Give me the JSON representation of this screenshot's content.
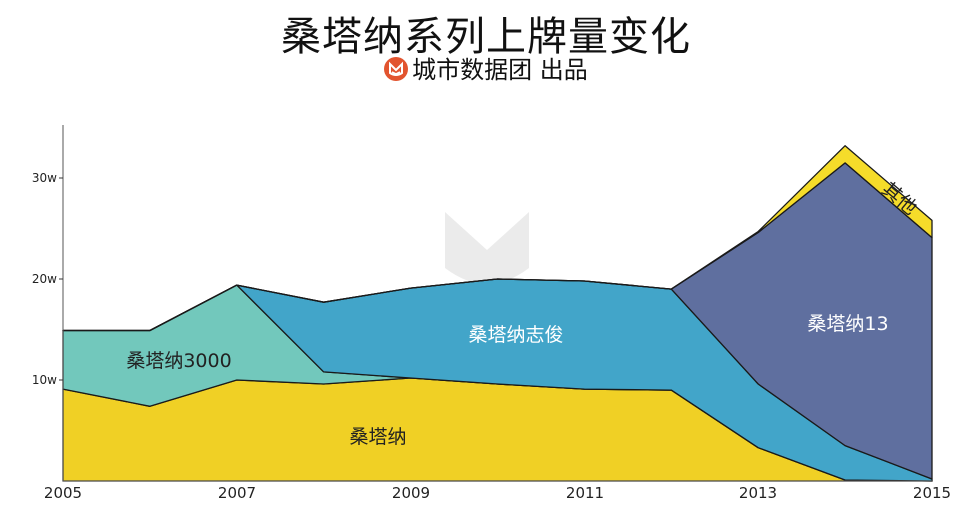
{
  "header": {
    "title": "桑塔纳系列上牌量变化",
    "subtitle": "城市数据团 出品",
    "logo_color": "#e2542f"
  },
  "chart_data": {
    "type": "area",
    "stacked": true,
    "title": "桑塔纳系列上牌量变化",
    "subtitle": "城市数据团 出品",
    "xlabel": "",
    "ylabel": "",
    "x": [
      2005,
      2006,
      2007,
      2008,
      2009,
      2010,
      2011,
      2012,
      2013,
      2014,
      2015
    ],
    "x_tick_labels": [
      "2005",
      "2007",
      "2009",
      "2011",
      "2013",
      "2015"
    ],
    "y_tick_labels": [
      "10w",
      "20w",
      "30w"
    ],
    "y_ticks": [
      10,
      20,
      30
    ],
    "ylim": [
      0,
      35
    ],
    "unit": "w (万)",
    "grid": false,
    "legend": "inline labels on areas",
    "series": [
      {
        "name": "桑塔纳",
        "color": "#f0d025",
        "label_color": "#222222",
        "values": [
          9.1,
          7.4,
          10.0,
          9.6,
          10.2,
          9.6,
          9.1,
          9.0,
          3.3,
          0.1,
          0.0
        ]
      },
      {
        "name": "桑塔纳3000",
        "color": "#72c8bc",
        "label_color": "#222222",
        "values": [
          5.8,
          7.5,
          9.4,
          1.2,
          0.0,
          0.0,
          0.0,
          0.0,
          0.0,
          0.0,
          0.0
        ]
      },
      {
        "name": "桑塔纳志俊",
        "color": "#42a5c9",
        "label_color": "#ffffff",
        "values": [
          0.0,
          0.0,
          0.0,
          6.9,
          8.9,
          10.4,
          10.7,
          10.0,
          6.3,
          3.4,
          0.2
        ]
      },
      {
        "name": "桑塔纳13",
        "color": "#5f6f9f",
        "label_color": "#ffffff",
        "values": [
          0.0,
          0.0,
          0.0,
          0.0,
          0.0,
          0.0,
          0.0,
          0.0,
          15.0,
          28.0,
          23.9
        ]
      },
      {
        "name": "其他",
        "color": "#f5dc2a",
        "label_color": "#222222",
        "values": [
          0.0,
          0.0,
          0.0,
          0.0,
          0.0,
          0.0,
          0.0,
          0.0,
          0.1,
          1.7,
          1.7
        ]
      }
    ]
  },
  "labels": {
    "santana": "桑塔纳",
    "santana3000": "桑塔纳3000",
    "zhijun": "桑塔纳志俊",
    "s13": "桑塔纳13",
    "other": "其他"
  },
  "axis": {
    "y": [
      "10w",
      "20w",
      "30w"
    ],
    "x": [
      "2005",
      "2007",
      "2009",
      "2011",
      "2013",
      "2015"
    ]
  }
}
